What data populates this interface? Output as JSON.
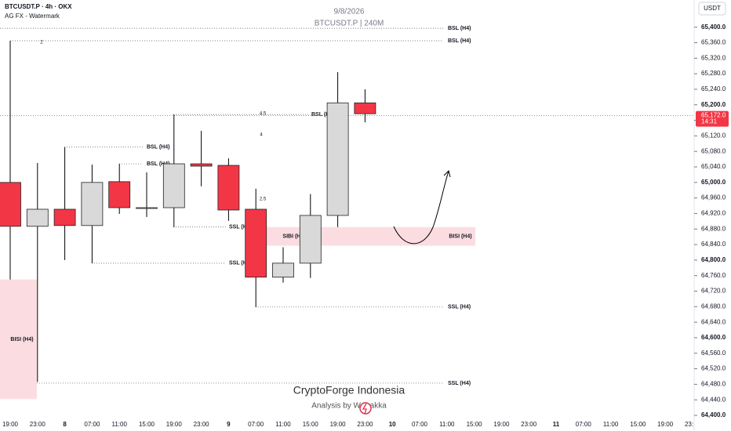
{
  "chart_data": {
    "type": "candlestick",
    "title": "BTCUSDT.P · 4h · OKX",
    "subtitle": "AG FX - Watermark",
    "date": "9/8/2026",
    "symbol_label": "BTCUSDT.P | 240M",
    "currency": "USDT",
    "watermark": "CryptoForge Indonesia",
    "watermark_sub": "Analysis by W Trakka",
    "categories": [
      "19:00",
      "23:00",
      "8",
      "07:00",
      "11:00",
      "15:00",
      "19:00",
      "23:00",
      "9",
      "07:00",
      "11:00",
      "15:00",
      "19:00",
      "23:00",
      "10",
      "07:00",
      "11:00",
      "15:00",
      "19:00",
      "23:00",
      "11",
      "07:00",
      "11:00",
      "15:00",
      "19:00",
      "23:00"
    ],
    "open": [
      65000,
      64887,
      64931,
      64889,
      65002,
      64935,
      64935,
      65048,
      65044,
      64931,
      64756,
      64792,
      64915,
      65205,
      null,
      null,
      null,
      null,
      null,
      null,
      null,
      null,
      null,
      null,
      null,
      null
    ],
    "high": [
      65365,
      65050,
      65091,
      65046,
      65048,
      65026,
      65175,
      65133,
      65062,
      64984,
      64833,
      64970,
      65284,
      65240,
      null,
      null,
      null,
      null,
      null,
      null,
      null,
      null,
      null,
      null,
      null,
      null
    ],
    "low": [
      64750,
      64486,
      64800,
      64792,
      64919,
      64911,
      64885,
      64990,
      64901,
      64679,
      64742,
      64754,
      64885,
      65155,
      null,
      null,
      null,
      null,
      null,
      null,
      null,
      null,
      null,
      null,
      null,
      null
    ],
    "close": [
      64887,
      64931,
      64889,
      65000,
      64935,
      64935,
      65048,
      65042,
      64929,
      64756,
      64792,
      64915,
      65205,
      65177,
      null,
      null,
      null,
      null,
      null,
      null,
      null,
      null,
      null,
      null,
      null,
      null
    ],
    "up_color": "#d9d9d9",
    "down_color": "#f23645",
    "ylim": [
      64392,
      65470
    ],
    "yticks": [
      {
        "value": 65400,
        "label": "65,400.0"
      },
      {
        "value": 65360,
        "label": "65,360.0"
      },
      {
        "value": 65320,
        "label": "65,320.0"
      },
      {
        "value": 65280,
        "label": "65,280.0"
      },
      {
        "value": 65240,
        "label": "65,240.0"
      },
      {
        "value": 65200,
        "label": "65,200.0"
      },
      {
        "value": 65160,
        "label": "65,160.0"
      },
      {
        "value": 65120,
        "label": "65,120.0"
      },
      {
        "value": 65080,
        "label": "65,080.0"
      },
      {
        "value": 65040,
        "label": "65,040.0"
      },
      {
        "value": 65000,
        "label": "65,000.0"
      },
      {
        "value": 64960,
        "label": "64,960.0"
      },
      {
        "value": 64920,
        "label": "64,920.0"
      },
      {
        "value": 64880,
        "label": "64,880.0"
      },
      {
        "value": 64840,
        "label": "64,840.0"
      },
      {
        "value": 64800,
        "label": "64,800.0"
      },
      {
        "value": 64760,
        "label": "64,760.0"
      },
      {
        "value": 64720,
        "label": "64,720.0"
      },
      {
        "value": 64680,
        "label": "64,680.0"
      },
      {
        "value": 64640,
        "label": "64,640.0"
      },
      {
        "value": 64600,
        "label": "64,600.0"
      },
      {
        "value": 64560,
        "label": "64,560.0"
      },
      {
        "value": 64520,
        "label": "64,520.0"
      },
      {
        "value": 64480,
        "label": "64,480.0"
      },
      {
        "value": 64440,
        "label": "64,440.0"
      },
      {
        "value": 64400,
        "label": "64,400.0"
      }
    ],
    "current_price": {
      "value": 65172,
      "label": "65,172.0",
      "countdown": "14:31"
    },
    "levels": [
      {
        "label": "BSL (H4)",
        "price": 65397
      },
      {
        "label": "BSL (H4)",
        "price": 65365
      },
      {
        "label": "BSL (H4)",
        "price": 65175
      },
      {
        "label": "BSL (H4)",
        "price": 65091
      },
      {
        "label": "BSL (H4)",
        "price": 65048
      },
      {
        "label": "SSL (H4)",
        "price": 64885
      },
      {
        "label": "SSL (H4)",
        "price": 64792
      },
      {
        "label": "SSL (H4)",
        "price": 64679
      },
      {
        "label": "SSL (H4)",
        "price": 64483
      }
    ],
    "zones": [
      {
        "labels": [
          "BISI (H4)"
        ],
        "high": 64750,
        "low": 64442
      },
      {
        "labels": [
          "SIBI (H4)",
          "BISI (H4)"
        ],
        "high": 64885,
        "low": 64837
      }
    ],
    "notes": [
      "2",
      "4.5",
      "4",
      "2.5"
    ]
  }
}
